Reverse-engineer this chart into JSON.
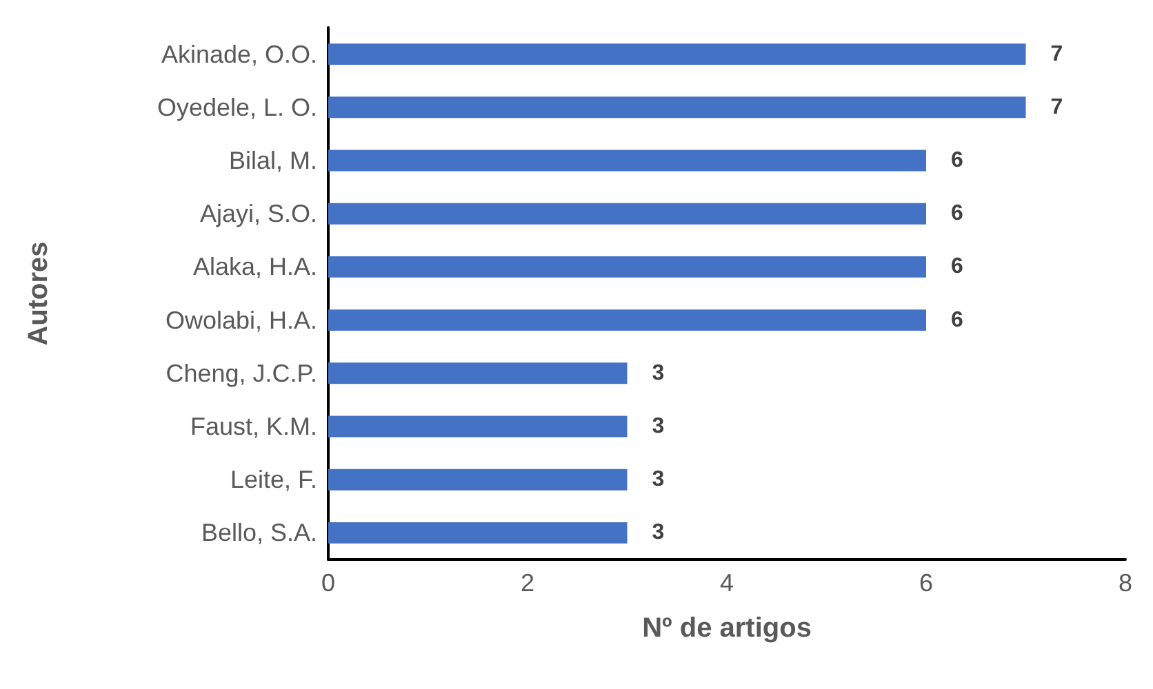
{
  "chart_data": {
    "type": "bar",
    "orientation": "horizontal",
    "xlabel": "Nº de artigos",
    "ylabel": "Autores",
    "categories": [
      "Akinade, O.O.",
      "Oyedele, L. O.",
      "Bilal, M.",
      "Ajayi, S.O.",
      "Alaka, H.A.",
      "Owolabi, H.A.",
      "Cheng, J.C.P.",
      "Faust, K.M.",
      "Leite, F.",
      "Bello, S.A."
    ],
    "values": [
      7,
      7,
      6,
      6,
      6,
      6,
      3,
      3,
      3,
      3
    ],
    "color": "#4472c4",
    "xlim": [
      0,
      8
    ],
    "xticks": [
      0,
      2,
      4,
      6,
      8
    ],
    "grid": false,
    "data_labels": true
  }
}
